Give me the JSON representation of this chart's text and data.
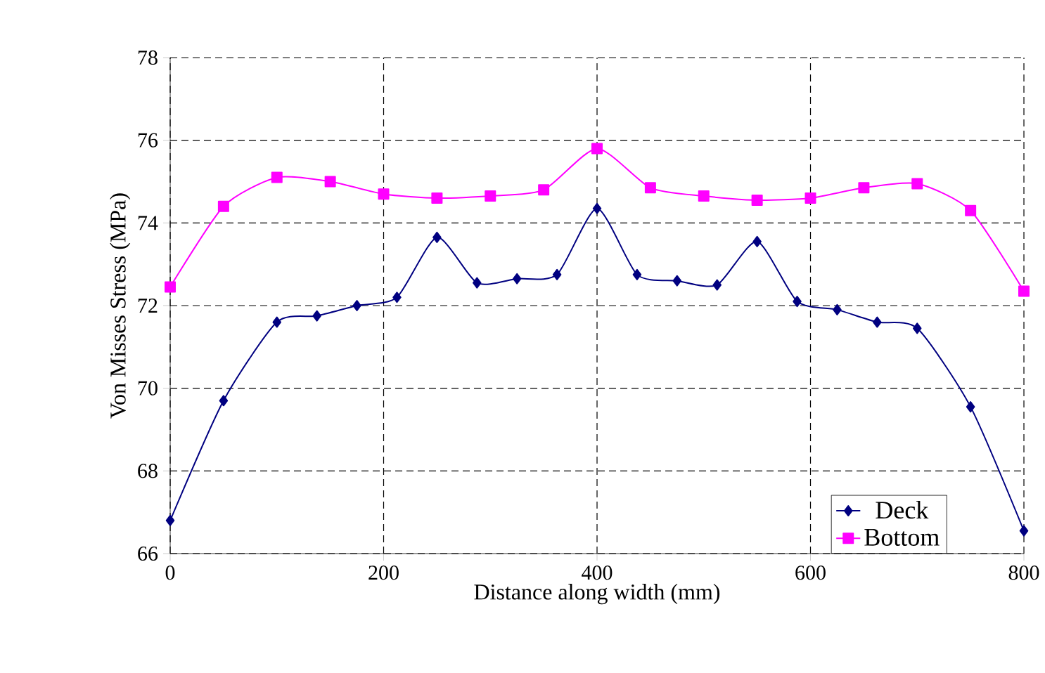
{
  "chart_data": {
    "type": "line",
    "xlabel": "Distance along width (mm)",
    "ylabel": "Von Misses Stress (MPa)",
    "xlim": [
      0,
      800
    ],
    "xticks": [
      0,
      200,
      400,
      600,
      800
    ],
    "ylim": [
      66,
      78
    ],
    "yticks": [
      66,
      68,
      70,
      72,
      74,
      76,
      78
    ],
    "grid": true,
    "legend": "bottom right",
    "series": [
      {
        "name": "Deck",
        "color": "#000080",
        "marker": "diamond",
        "x": [
          0,
          50,
          100,
          137.5,
          175,
          212.5,
          250,
          287.5,
          325,
          362.5,
          400,
          437.5,
          475,
          512.5,
          550,
          587.5,
          625,
          662.5,
          700,
          750,
          800
        ],
        "values": [
          66.8,
          69.7,
          71.6,
          71.75,
          72.0,
          72.2,
          73.65,
          72.55,
          72.65,
          72.75,
          74.35,
          72.75,
          72.6,
          72.5,
          73.55,
          72.1,
          71.9,
          71.6,
          71.45,
          69.55,
          66.55
        ]
      },
      {
        "name": "Bottom",
        "color": "#ff00ff",
        "marker": "square",
        "x": [
          0,
          50,
          100,
          150,
          200,
          250,
          300,
          350,
          400,
          450,
          500,
          550,
          600,
          650,
          700,
          750,
          800
        ],
        "values": [
          72.45,
          74.4,
          75.1,
          75.0,
          74.7,
          74.6,
          74.65,
          74.8,
          75.8,
          74.85,
          74.65,
          74.55,
          74.6,
          74.85,
          74.95,
          74.3,
          72.35
        ]
      }
    ]
  }
}
